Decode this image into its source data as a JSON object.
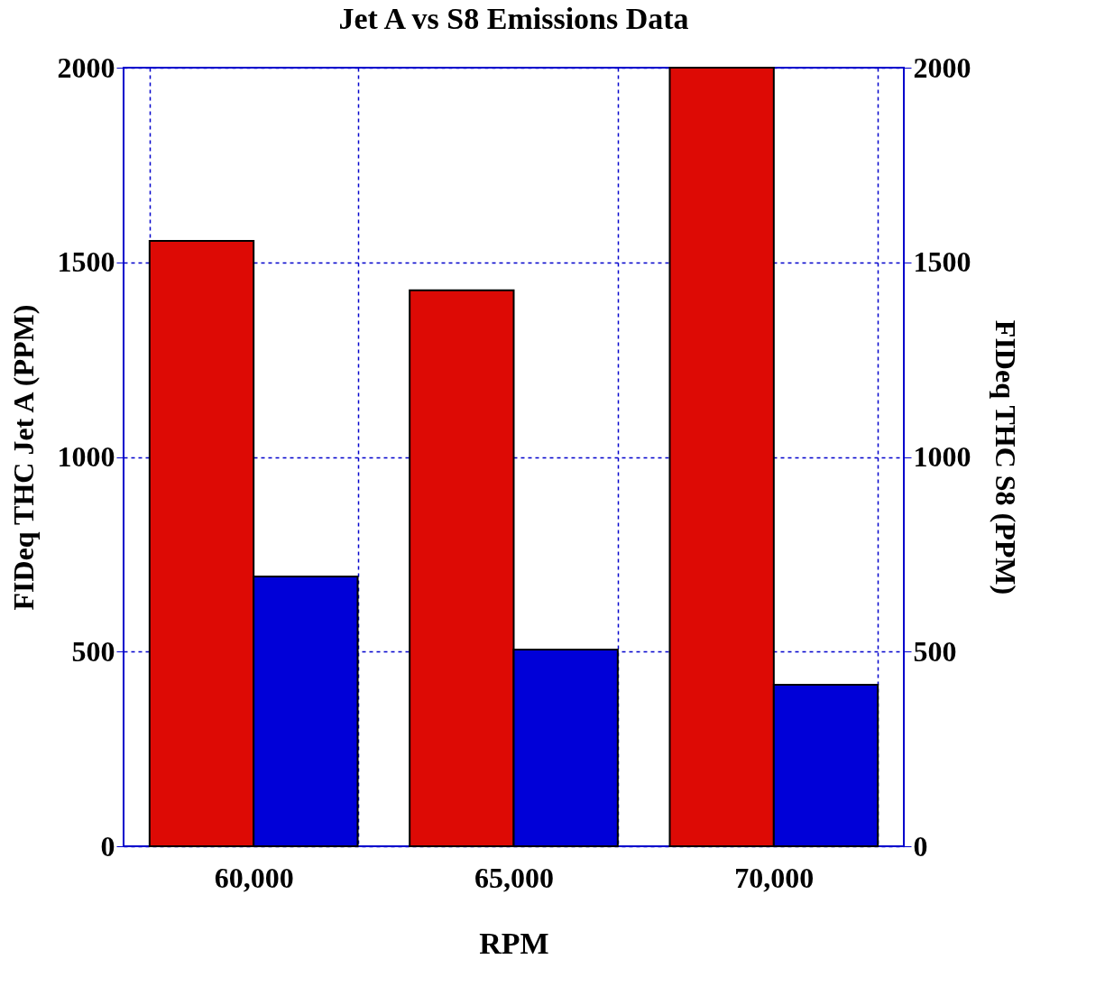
{
  "chart_data": {
    "type": "bar",
    "title": "Jet A  vs S8 Emissions Data",
    "xlabel": "RPM",
    "ylabel": "FIDeq THC Jet  A (PPM)",
    "y2label": "FIDeq THC S8 (PPM)",
    "categories": [
      "60,000",
      "65,000",
      "70,000"
    ],
    "series": [
      {
        "color": "#dd0a05",
        "values": [
          1555,
          1428,
          2000
        ]
      },
      {
        "color": "#0000d8",
        "values": [
          693,
          505,
          415
        ],
        "axis": "y2"
      }
    ],
    "ylim": [
      0,
      2000
    ],
    "yticks": [
      0,
      500,
      1000,
      1500,
      2000
    ],
    "y2lim": [
      0,
      2000
    ],
    "y2ticks": [
      0,
      500,
      1000,
      1500,
      2000
    ],
    "grid": true
  }
}
